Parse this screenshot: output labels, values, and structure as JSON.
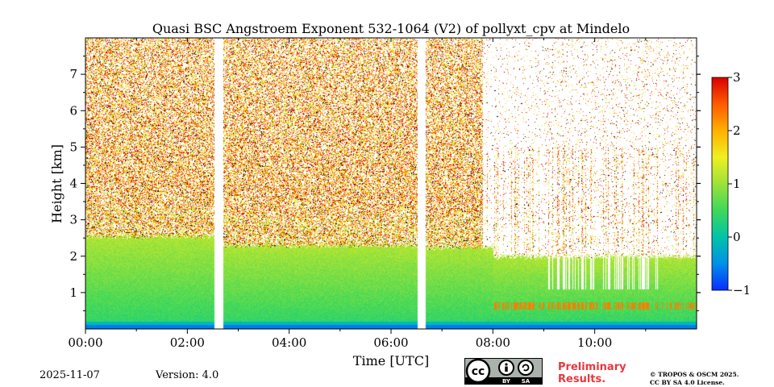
{
  "chart_data": {
    "type": "heatmap",
    "title": "Quasi BSC Angstroem Exponent 532-1064 (V2) of pollyxt_cpv at Mindelo",
    "xlabel": "Time [UTC]",
    "ylabel": "Height [km]",
    "x_range_hours": [
      0,
      12
    ],
    "y_range_km": [
      0,
      8
    ],
    "x_ticks": [
      {
        "value": 0,
        "label": "00:00"
      },
      {
        "value": 2,
        "label": "02:00"
      },
      {
        "value": 4,
        "label": "04:00"
      },
      {
        "value": 6,
        "label": "06:00"
      },
      {
        "value": 8,
        "label": "08:00"
      },
      {
        "value": 10,
        "label": "10:00"
      }
    ],
    "y_ticks": [
      {
        "value": 1,
        "label": "1"
      },
      {
        "value": 2,
        "label": "2"
      },
      {
        "value": 3,
        "label": "3"
      },
      {
        "value": 4,
        "label": "4"
      },
      {
        "value": 5,
        "label": "5"
      },
      {
        "value": 6,
        "label": "6"
      },
      {
        "value": 7,
        "label": "7"
      }
    ],
    "colorbar": {
      "range": [
        -1,
        3
      ],
      "ticks": [
        {
          "value": 3,
          "label": "3"
        },
        {
          "value": 2,
          "label": "2"
        },
        {
          "value": 1,
          "label": "1"
        },
        {
          "value": 0,
          "label": "0"
        },
        {
          "value": -1,
          "label": "−1"
        }
      ],
      "colors": [
        "#0a2cff",
        "#0090e8",
        "#00c4a8",
        "#3ed85a",
        "#9ce23a",
        "#f0f020",
        "#ffb000",
        "#ff5a00",
        "#d80000"
      ]
    },
    "data_gaps_hours": [
      [
        2.53,
        2.7
      ],
      [
        6.52,
        6.68
      ]
    ],
    "boundary_layer_top_km": [
      {
        "from_h": 0,
        "to_h": 2.53,
        "height": 2.55
      },
      {
        "from_h": 2.7,
        "to_h": 6.52,
        "height": 2.3
      },
      {
        "from_h": 6.68,
        "to_h": 8,
        "height": 2.25
      },
      {
        "from_h": 8,
        "to_h": 12,
        "height": 2.0
      }
    ]
  },
  "footer": {
    "date": "2025-11-07",
    "version": "Version: 4.0",
    "preliminary_line1": "Preliminary",
    "preliminary_line2": "Results.",
    "copyright_line1": "© TROPOS & OSCM 2025.",
    "copyright_line2": "CC BY SA 4.0 License.",
    "badge_cc": "cc",
    "badge_by": "BY",
    "badge_sa": "SA"
  }
}
